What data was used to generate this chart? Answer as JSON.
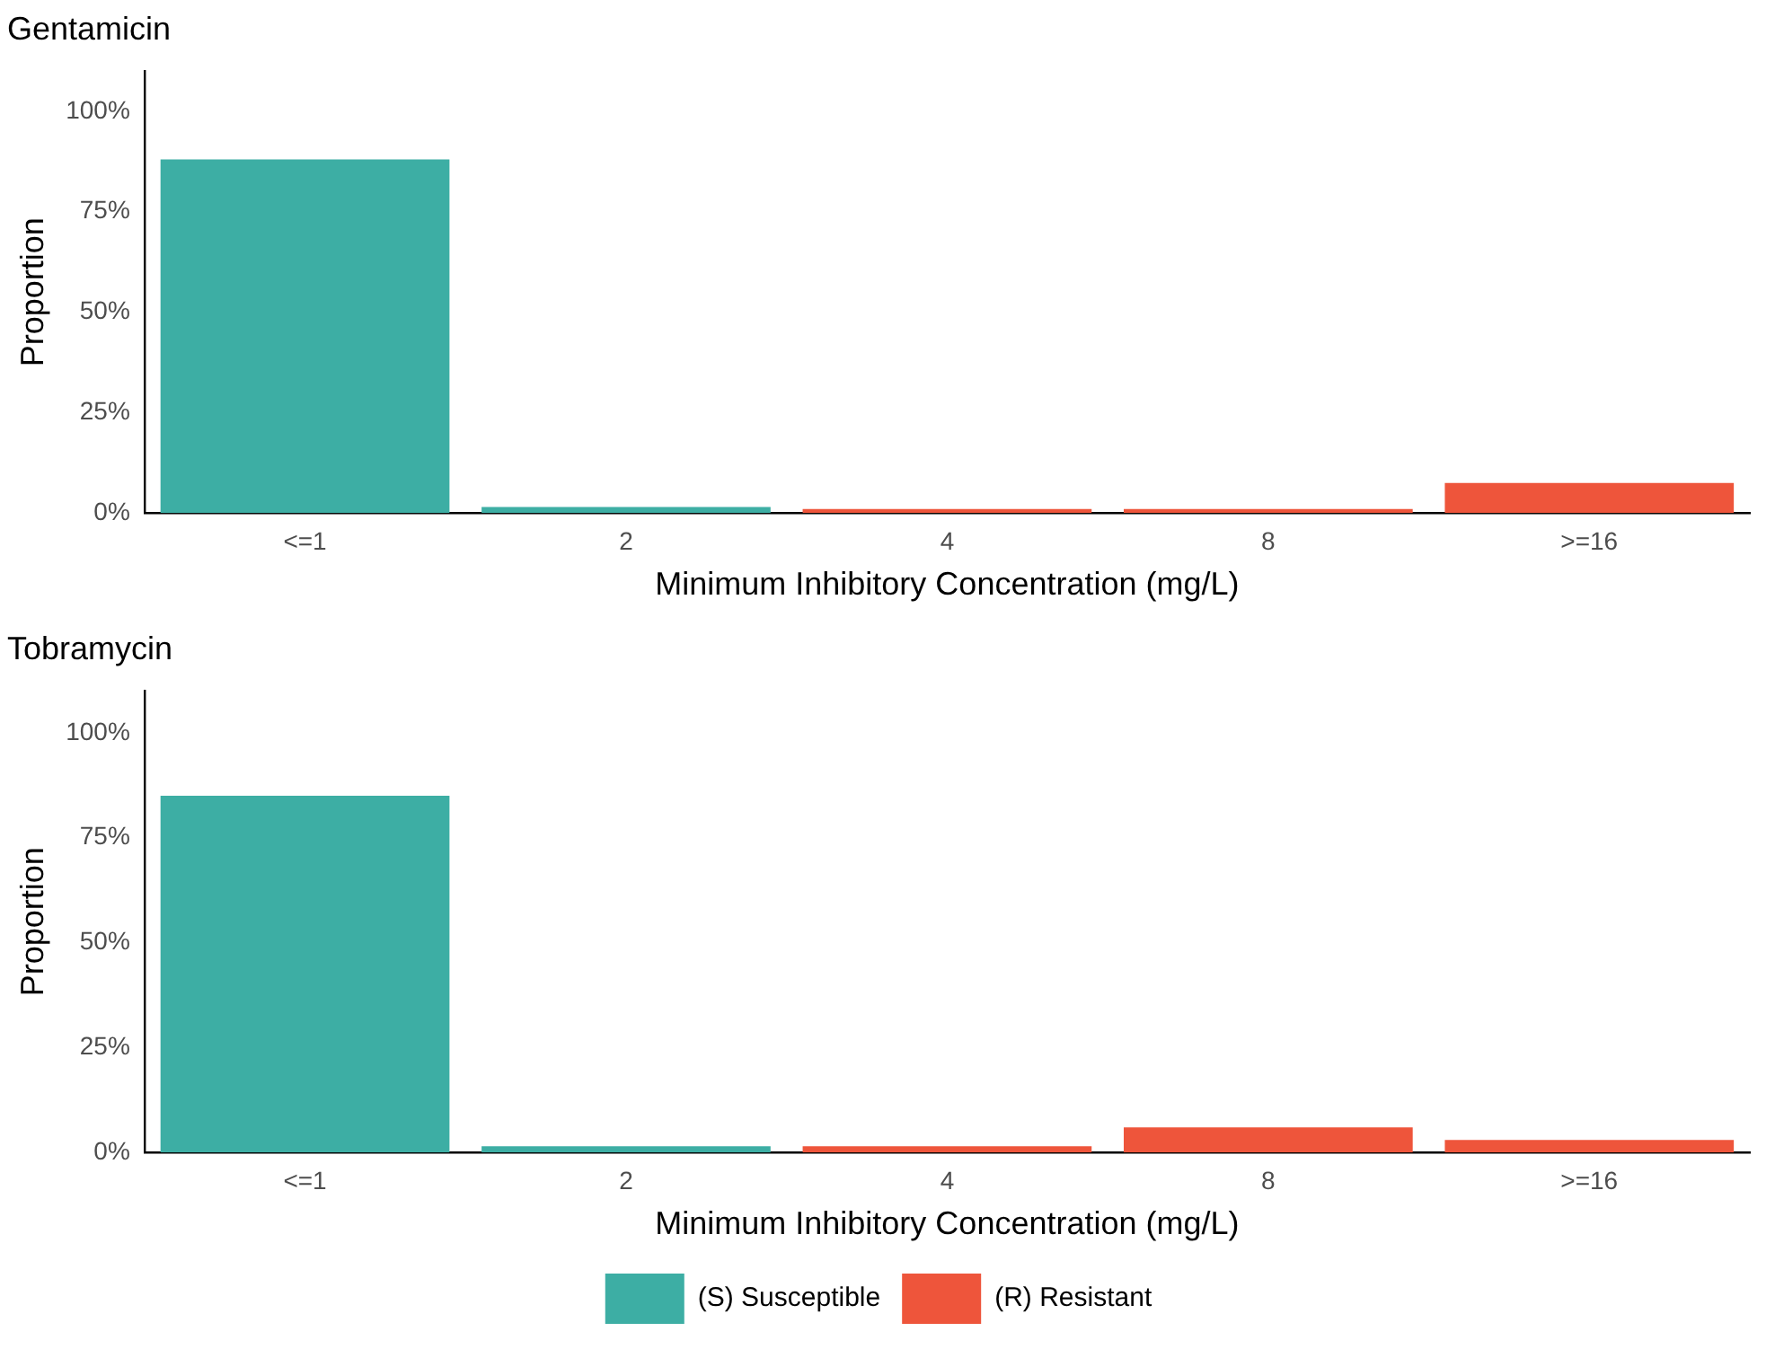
{
  "chart_data": [
    {
      "type": "bar",
      "title": "Gentamicin",
      "xlabel": "Minimum Inhibitory Concentration (mg/L)",
      "ylabel": "Proportion",
      "categories": [
        "<=1",
        "2",
        "4",
        "8",
        ">=16"
      ],
      "series": [
        {
          "color": "#3daea4",
          "values": [
            88,
            1.5,
            null,
            null,
            null
          ]
        },
        {
          "color": "#ee553b",
          "values": [
            null,
            null,
            1,
            1,
            7.5
          ]
        }
      ],
      "ylim": [
        0,
        110
      ],
      "yticks": [
        {
          "value": 0,
          "label": "0%"
        },
        {
          "value": 25,
          "label": "25%"
        },
        {
          "value": 50,
          "label": "50%"
        },
        {
          "value": 75,
          "label": "75%"
        },
        {
          "value": 100,
          "label": "100%"
        }
      ],
      "grid": false,
      "legend": false
    },
    {
      "type": "bar",
      "title": "Tobramycin",
      "xlabel": "Minimum Inhibitory Concentration (mg/L)",
      "ylabel": "Proportion",
      "categories": [
        "<=1",
        "2",
        "4",
        "8",
        ">=16"
      ],
      "series": [
        {
          "name": "(S) Susceptible",
          "color": "#3daea4",
          "values": [
            85,
            1.5,
            null,
            null,
            null
          ]
        },
        {
          "name": "(R) Resistant",
          "color": "#ee553b",
          "values": [
            null,
            null,
            1.5,
            6,
            3
          ]
        }
      ],
      "ylim": [
        0,
        110
      ],
      "yticks": [
        {
          "value": 0,
          "label": "0%"
        },
        {
          "value": 25,
          "label": "25%"
        },
        {
          "value": 50,
          "label": "50%"
        },
        {
          "value": 75,
          "label": "75%"
        },
        {
          "value": 100,
          "label": "100%"
        }
      ],
      "grid": false,
      "legend": "bottom"
    }
  ]
}
